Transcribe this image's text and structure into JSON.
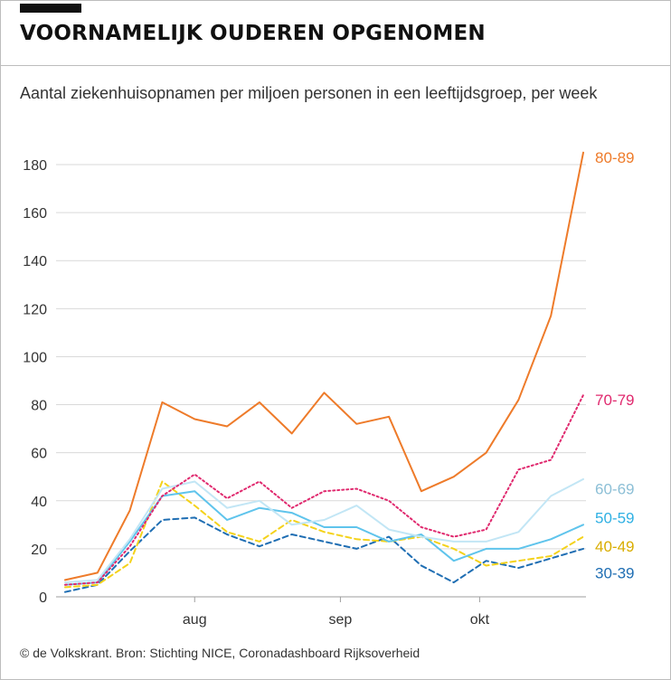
{
  "header": {
    "title": "VOORNAMELIJK OUDEREN OPGENOMEN",
    "subtitle": "Aantal ziekenhuisopnamen per miljoen personen in een leeftijdsgroep, per week"
  },
  "footer": {
    "credit": "© de Volkskrant. Bron: Stichting NICE, Coronadashboard Rijksoverheid"
  },
  "chart_data": {
    "type": "line",
    "title": "VOORNAMELIJK OUDEREN OPGENOMEN",
    "subtitle": "Aantal ziekenhuisopnamen per miljoen personen in een leeftijdsgroep, per week",
    "xlabel": "",
    "ylabel": "",
    "ylim": [
      0,
      180
    ],
    "yticks": [
      0,
      20,
      40,
      60,
      80,
      100,
      120,
      140,
      160,
      180
    ],
    "x": [
      1,
      2,
      3,
      4,
      5,
      6,
      7,
      8,
      9,
      10,
      11,
      12,
      13,
      14,
      15,
      16,
      17
    ],
    "xticks": [
      {
        "x": 5,
        "label": "aug"
      },
      {
        "x": 9.5,
        "label": "sep"
      },
      {
        "x": 13.8,
        "label": "okt"
      }
    ],
    "grid": true,
    "series": [
      {
        "name": "80-89",
        "color": "#ee7b2a",
        "dash": "solid",
        "strokeWidth": 2,
        "values": [
          7,
          10,
          36,
          81,
          74,
          71,
          81,
          68,
          85,
          72,
          75,
          44,
          50,
          60,
          82,
          117,
          185
        ]
      },
      {
        "name": "70-79",
        "color": "#e0296e",
        "dash": "dotted",
        "strokeWidth": 2,
        "values": [
          5,
          6,
          21,
          42,
          51,
          41,
          48,
          37,
          44,
          45,
          40,
          29,
          25,
          28,
          53,
          57,
          84
        ]
      },
      {
        "name": "60-69",
        "color": "#c2e6f5",
        "dash": "solid",
        "strokeWidth": 2,
        "values": [
          6,
          7,
          24,
          45,
          48,
          37,
          40,
          30,
          32,
          38,
          28,
          25,
          23,
          23,
          27,
          42,
          49
        ]
      },
      {
        "name": "50-59",
        "color": "#5fc4ec",
        "dash": "solid",
        "strokeWidth": 2,
        "values": [
          5,
          6,
          23,
          42,
          44,
          32,
          37,
          35,
          29,
          29,
          23,
          26,
          15,
          20,
          20,
          24,
          30
        ]
      },
      {
        "name": "40-49",
        "color": "#f4d21b",
        "dash": "dashed",
        "strokeWidth": 2,
        "values": [
          4,
          5,
          14,
          48,
          38,
          27,
          23,
          32,
          27,
          24,
          23,
          25,
          20,
          13,
          15,
          17,
          25
        ]
      },
      {
        "name": "30-39",
        "color": "#1f6eb3",
        "dash": "dashed",
        "strokeWidth": 2,
        "values": [
          2,
          5,
          19,
          32,
          33,
          26,
          21,
          26,
          23,
          20,
          25,
          13,
          6,
          15,
          12,
          16,
          20
        ]
      }
    ],
    "labels": [
      {
        "series": "80-89",
        "text": "80-89",
        "color": "#ee7b2a",
        "y": 183
      },
      {
        "series": "70-79",
        "text": "70-79",
        "color": "#e0296e",
        "y": 82
      },
      {
        "series": "60-69",
        "text": "60-69",
        "color": "#8cbfd6",
        "y": 45
      },
      {
        "series": "50-59",
        "text": "50-59",
        "color": "#2fb0e3",
        "y": 33
      },
      {
        "series": "40-49",
        "text": "40-49",
        "color": "#d9ad00",
        "y": 21
      },
      {
        "series": "30-39",
        "text": "30-39",
        "color": "#1f6eb3",
        "y": 10
      }
    ]
  }
}
